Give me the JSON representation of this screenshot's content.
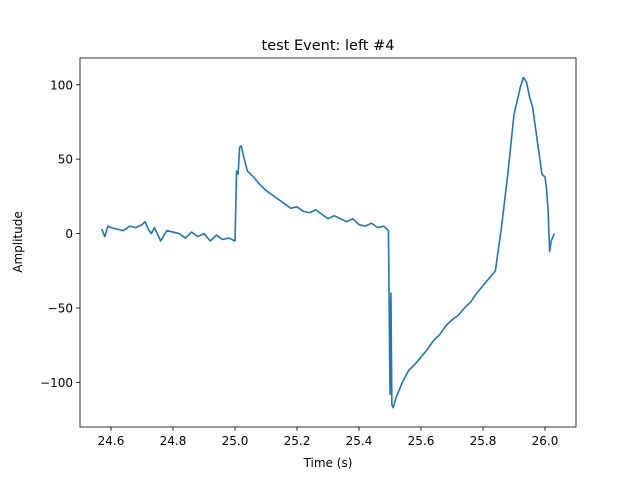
{
  "chart_data": {
    "type": "line",
    "title": "test Event: left #4",
    "xlabel": "Time (s)",
    "ylabel": "Amplitude",
    "xlim": [
      24.5,
      26.1
    ],
    "ylim": [
      -130,
      118
    ],
    "xticks": [
      24.6,
      24.8,
      25.0,
      25.2,
      25.4,
      25.6,
      25.8,
      26.0
    ],
    "xtick_labels": [
      "24.6",
      "24.8",
      "25.0",
      "25.2",
      "25.4",
      "25.6",
      "25.8",
      "26.0"
    ],
    "yticks": [
      -100,
      -50,
      0,
      50,
      100
    ],
    "ytick_labels": [
      "−100",
      "−50",
      "0",
      "50",
      "100"
    ],
    "grid": false,
    "series": [
      {
        "color": "#1f77b4",
        "x": [
          24.57,
          24.58,
          24.59,
          24.6,
          24.62,
          24.64,
          24.66,
          24.68,
          24.7,
          24.71,
          24.72,
          24.73,
          24.74,
          24.76,
          24.78,
          24.8,
          24.82,
          24.84,
          24.86,
          24.88,
          24.9,
          24.92,
          24.94,
          24.96,
          24.98,
          25.0,
          25.005,
          25.01,
          25.015,
          25.02,
          25.03,
          25.04,
          25.06,
          25.08,
          25.1,
          25.12,
          25.14,
          25.16,
          25.18,
          25.2,
          25.22,
          25.24,
          25.26,
          25.28,
          25.3,
          25.32,
          25.34,
          25.36,
          25.38,
          25.4,
          25.42,
          25.44,
          25.46,
          25.48,
          25.49,
          25.495,
          25.5,
          25.503,
          25.506,
          25.51,
          25.52,
          25.54,
          25.56,
          25.58,
          25.6,
          25.62,
          25.64,
          25.66,
          25.68,
          25.7,
          25.72,
          25.74,
          25.76,
          25.78,
          25.8,
          25.82,
          25.84,
          25.86,
          25.88,
          25.9,
          25.92,
          25.93,
          25.94,
          25.95,
          25.96,
          25.97,
          25.98,
          25.99,
          26.0,
          26.005,
          26.01,
          26.015,
          26.02,
          26.03
        ],
        "y": [
          3,
          -2,
          5,
          4,
          3,
          2,
          5,
          4,
          6,
          8,
          3,
          0,
          4,
          -5,
          2,
          1,
          0,
          -3,
          1,
          -2,
          0,
          -5,
          -1,
          -4,
          -3,
          -5,
          42,
          40,
          58,
          59,
          50,
          42,
          38,
          33,
          29,
          26,
          23,
          20,
          17,
          18,
          15,
          14,
          16,
          13,
          10,
          12,
          10,
          8,
          10,
          6,
          5,
          7,
          4,
          5,
          3,
          2,
          -108,
          -40,
          -115,
          -117,
          -110,
          -100,
          -92,
          -88,
          -83,
          -78,
          -72,
          -68,
          -62,
          -58,
          -55,
          -50,
          -46,
          -40,
          -35,
          -30,
          -25,
          5,
          40,
          80,
          98,
          105,
          102,
          92,
          85,
          70,
          55,
          40,
          38,
          30,
          15,
          -12,
          -5,
          0
        ]
      }
    ]
  }
}
